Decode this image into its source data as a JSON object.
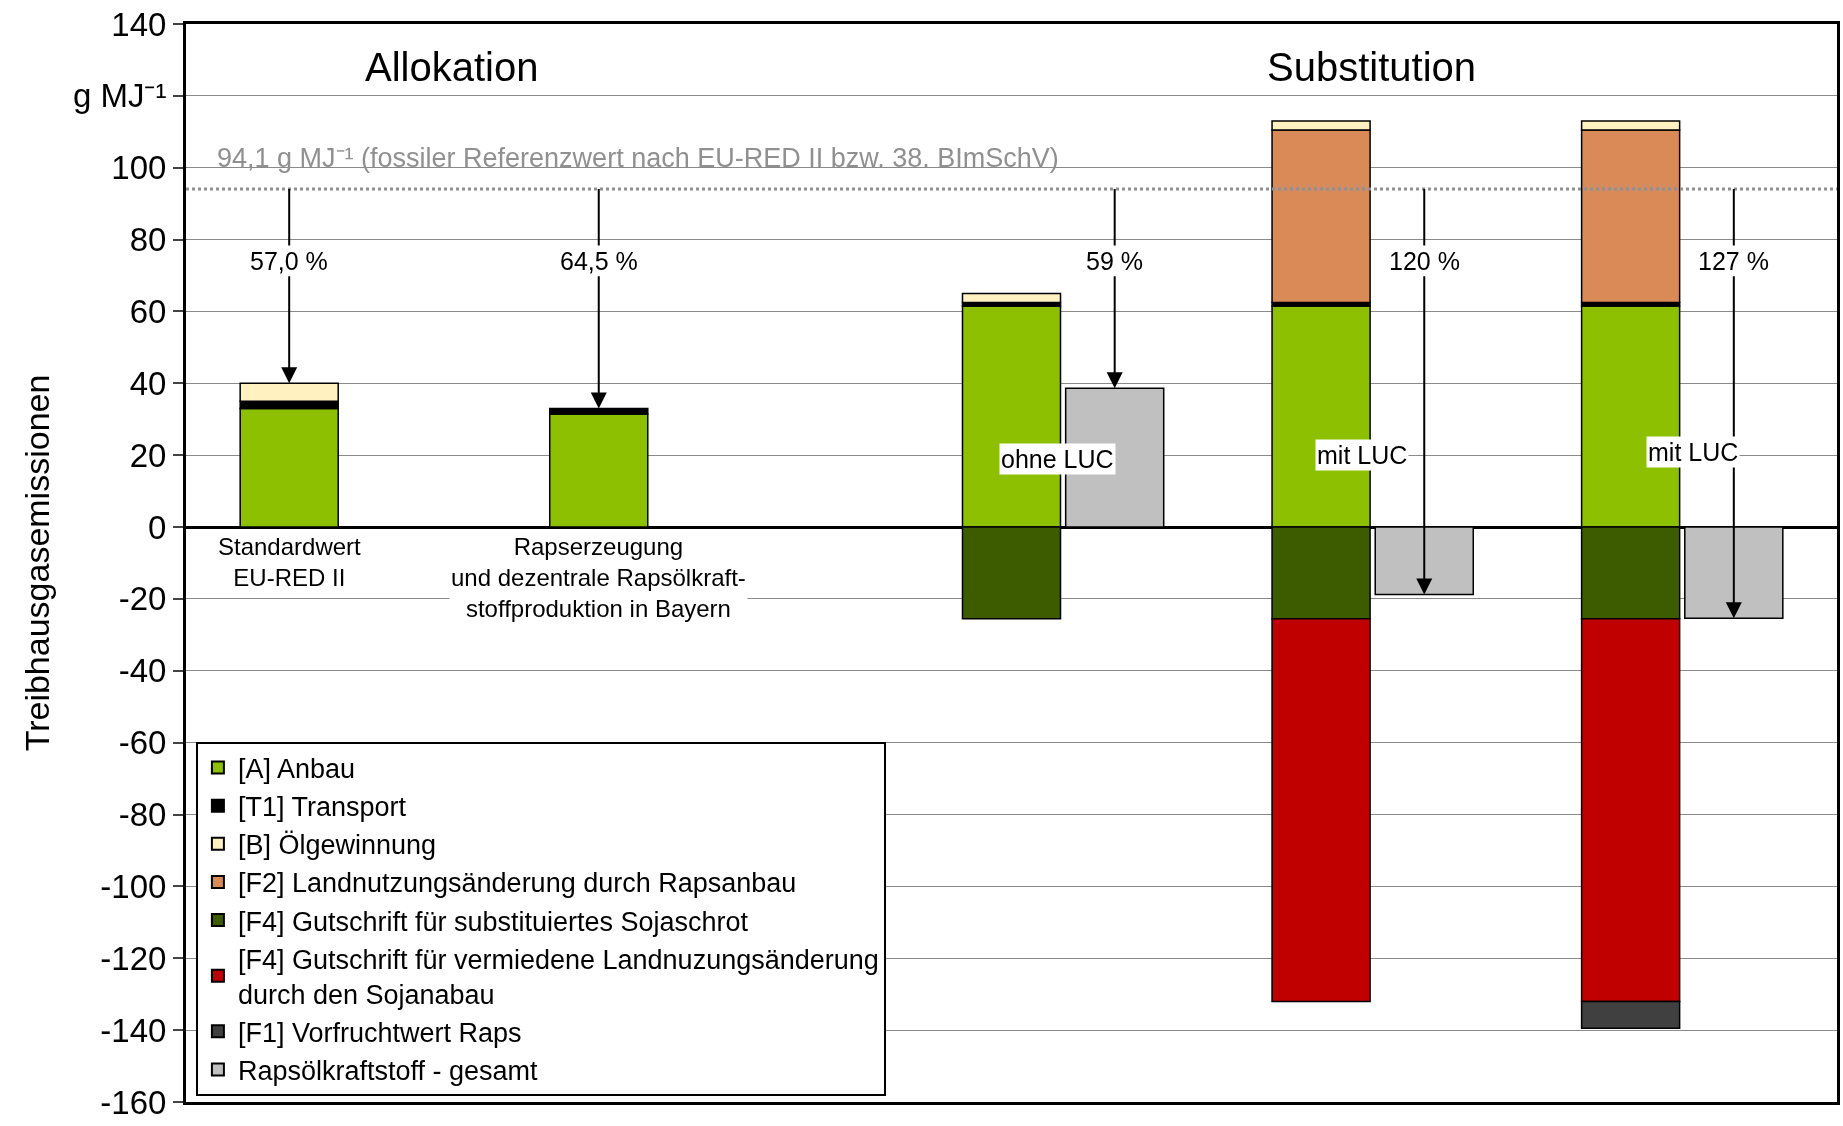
{
  "chart_data": {
    "type": "bar",
    "stacked": true,
    "ylabel": "Treibhausgasemissionen",
    "categories": [
      "Standardwert\nEU-RED II",
      null,
      null,
      "Rapserzeugung\nund dezentrale Rapsölkraft-\nstoffproduktion in Bayern",
      null,
      null,
      null,
      null,
      null,
      null,
      null,
      null,
      null,
      null,
      null
    ],
    "series": [
      {
        "name": "[A] Anbau",
        "color": "#8dc000",
        "values": [
          33,
          null,
          null,
          31.5,
          null,
          null,
          null,
          61.5,
          null,
          null,
          61.5,
          null,
          null,
          61.5,
          null
        ]
      },
      {
        "name": "[T1] Transport",
        "color": "#000000",
        "values": [
          2,
          null,
          null,
          1.5,
          null,
          null,
          null,
          1,
          null,
          null,
          1,
          null,
          null,
          1,
          null
        ]
      },
      {
        "name": "[F2] Landnutzungsänderung durch Rapsanbau",
        "color": "#d98a57",
        "values": [
          null,
          null,
          null,
          null,
          null,
          null,
          null,
          null,
          null,
          null,
          48,
          null,
          null,
          48,
          null
        ]
      },
      {
        "name": "[B] Ölgewinnung",
        "color": "#fff2c0",
        "values": [
          5,
          null,
          null,
          null,
          null,
          null,
          null,
          2.5,
          null,
          null,
          2.5,
          null,
          null,
          2.5,
          null
        ]
      },
      {
        "name": "[F4] Gutschrift für substituiertes Sojaschrot",
        "color": "#3d5c00",
        "values": [
          null,
          null,
          null,
          null,
          null,
          null,
          null,
          -25.5,
          null,
          null,
          -25.5,
          null,
          null,
          -25.5,
          null
        ]
      },
      {
        "name": "[F4] Gutschrift für vermiedene Landnuzungsänderung\ndurch den Sojanabau",
        "color": "#c00000",
        "values": [
          null,
          null,
          null,
          null,
          null,
          null,
          null,
          null,
          null,
          null,
          -106.5,
          null,
          null,
          -106.5,
          null
        ]
      },
      {
        "name": "[F1] Vorfruchtwert Raps",
        "color": "#404040",
        "values": [
          null,
          null,
          null,
          null,
          null,
          null,
          null,
          null,
          null,
          null,
          null,
          null,
          null,
          -7.5,
          null
        ]
      },
      {
        "name": "Rapsölkraftstoff - gesamt",
        "color": "#c0c0c0",
        "values": [
          null,
          null,
          null,
          null,
          null,
          null,
          null,
          null,
          38.6,
          null,
          null,
          -18.8,
          null,
          null,
          -25.4
        ]
      }
    ],
    "ylim": [
      -160,
      140
    ],
    "yticks": [
      -160,
      -140,
      -120,
      -100,
      -80,
      -60,
      -40,
      -20,
      0,
      20,
      40,
      60,
      80,
      100,
      {
        "value": 120,
        "label": "g MJ⁻¹"
      },
      140
    ],
    "grid": "y",
    "legend": "bottom left",
    "ref_lines": [
      {
        "axis": "y",
        "value": 94.1,
        "label": "94,1 g MJ⁻¹ (fossiler Referenzwert nach EU-RED II bzw. 38. BImSchV)",
        "color": "#909090",
        "line_style": "dotted"
      }
    ],
    "annotations": [
      "Allokation",
      "Substitution",
      {
        "text": "57,0 %",
        "x": "Standardwert\nEU-RED II",
        "y": 40
      },
      {
        "text": "64,5 %",
        "x": "Rapserzeugung\nund dezentrale Rapsölkraft-\nstoffproduktion in Bayern",
        "y": 33
      },
      {
        "text": "59 %",
        "y": 38.6
      },
      {
        "text": "120 %",
        "y": -18.8
      },
      {
        "text": "127 %",
        "y": -25.4
      },
      "ohne LUC",
      "mit LUC",
      "mit LUC"
    ]
  }
}
